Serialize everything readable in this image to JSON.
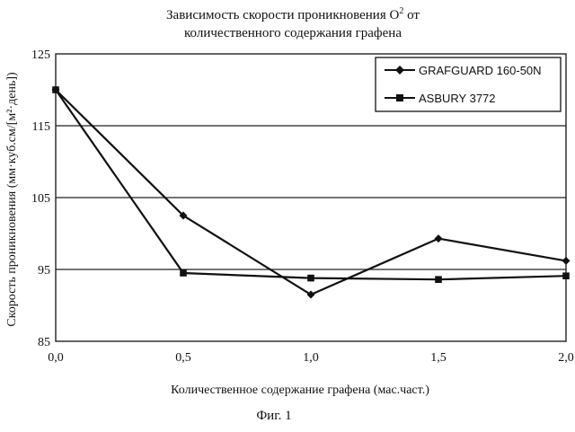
{
  "chart_data": {
    "type": "line",
    "title_line1": "Зависимость скорости проникновения O",
    "title_sup": "2",
    "title_line1_end": " от",
    "title_line2": "количественного содержания графена",
    "xlabel": "Количественное содержание графена (мас.част.)",
    "ylabel": "Скорость проникновения (мм·куб.см/[м²·день])",
    "x_ticks": [
      "0,0",
      "0,5",
      "1,0",
      "1,5",
      "2,0"
    ],
    "y_ticks": [
      "85",
      "95",
      "105",
      "115",
      "125"
    ],
    "xlim": [
      0,
      2
    ],
    "ylim": [
      85,
      125
    ],
    "grid": "horizontal",
    "legend_position": "top-right",
    "series": [
      {
        "name": "GRAFGUARD 160-50N",
        "marker": "diamond",
        "x": [
          0,
          0.5,
          1.0,
          1.5,
          2.0
        ],
        "y": [
          120,
          102.5,
          91.5,
          99.3,
          96.2
        ]
      },
      {
        "name": "ASBURY 3772",
        "marker": "square",
        "x": [
          0,
          0.5,
          1.0,
          1.5,
          2.0
        ],
        "y": [
          120,
          94.5,
          93.8,
          93.6,
          94.1
        ]
      }
    ]
  },
  "caption": "Фиг. 1"
}
